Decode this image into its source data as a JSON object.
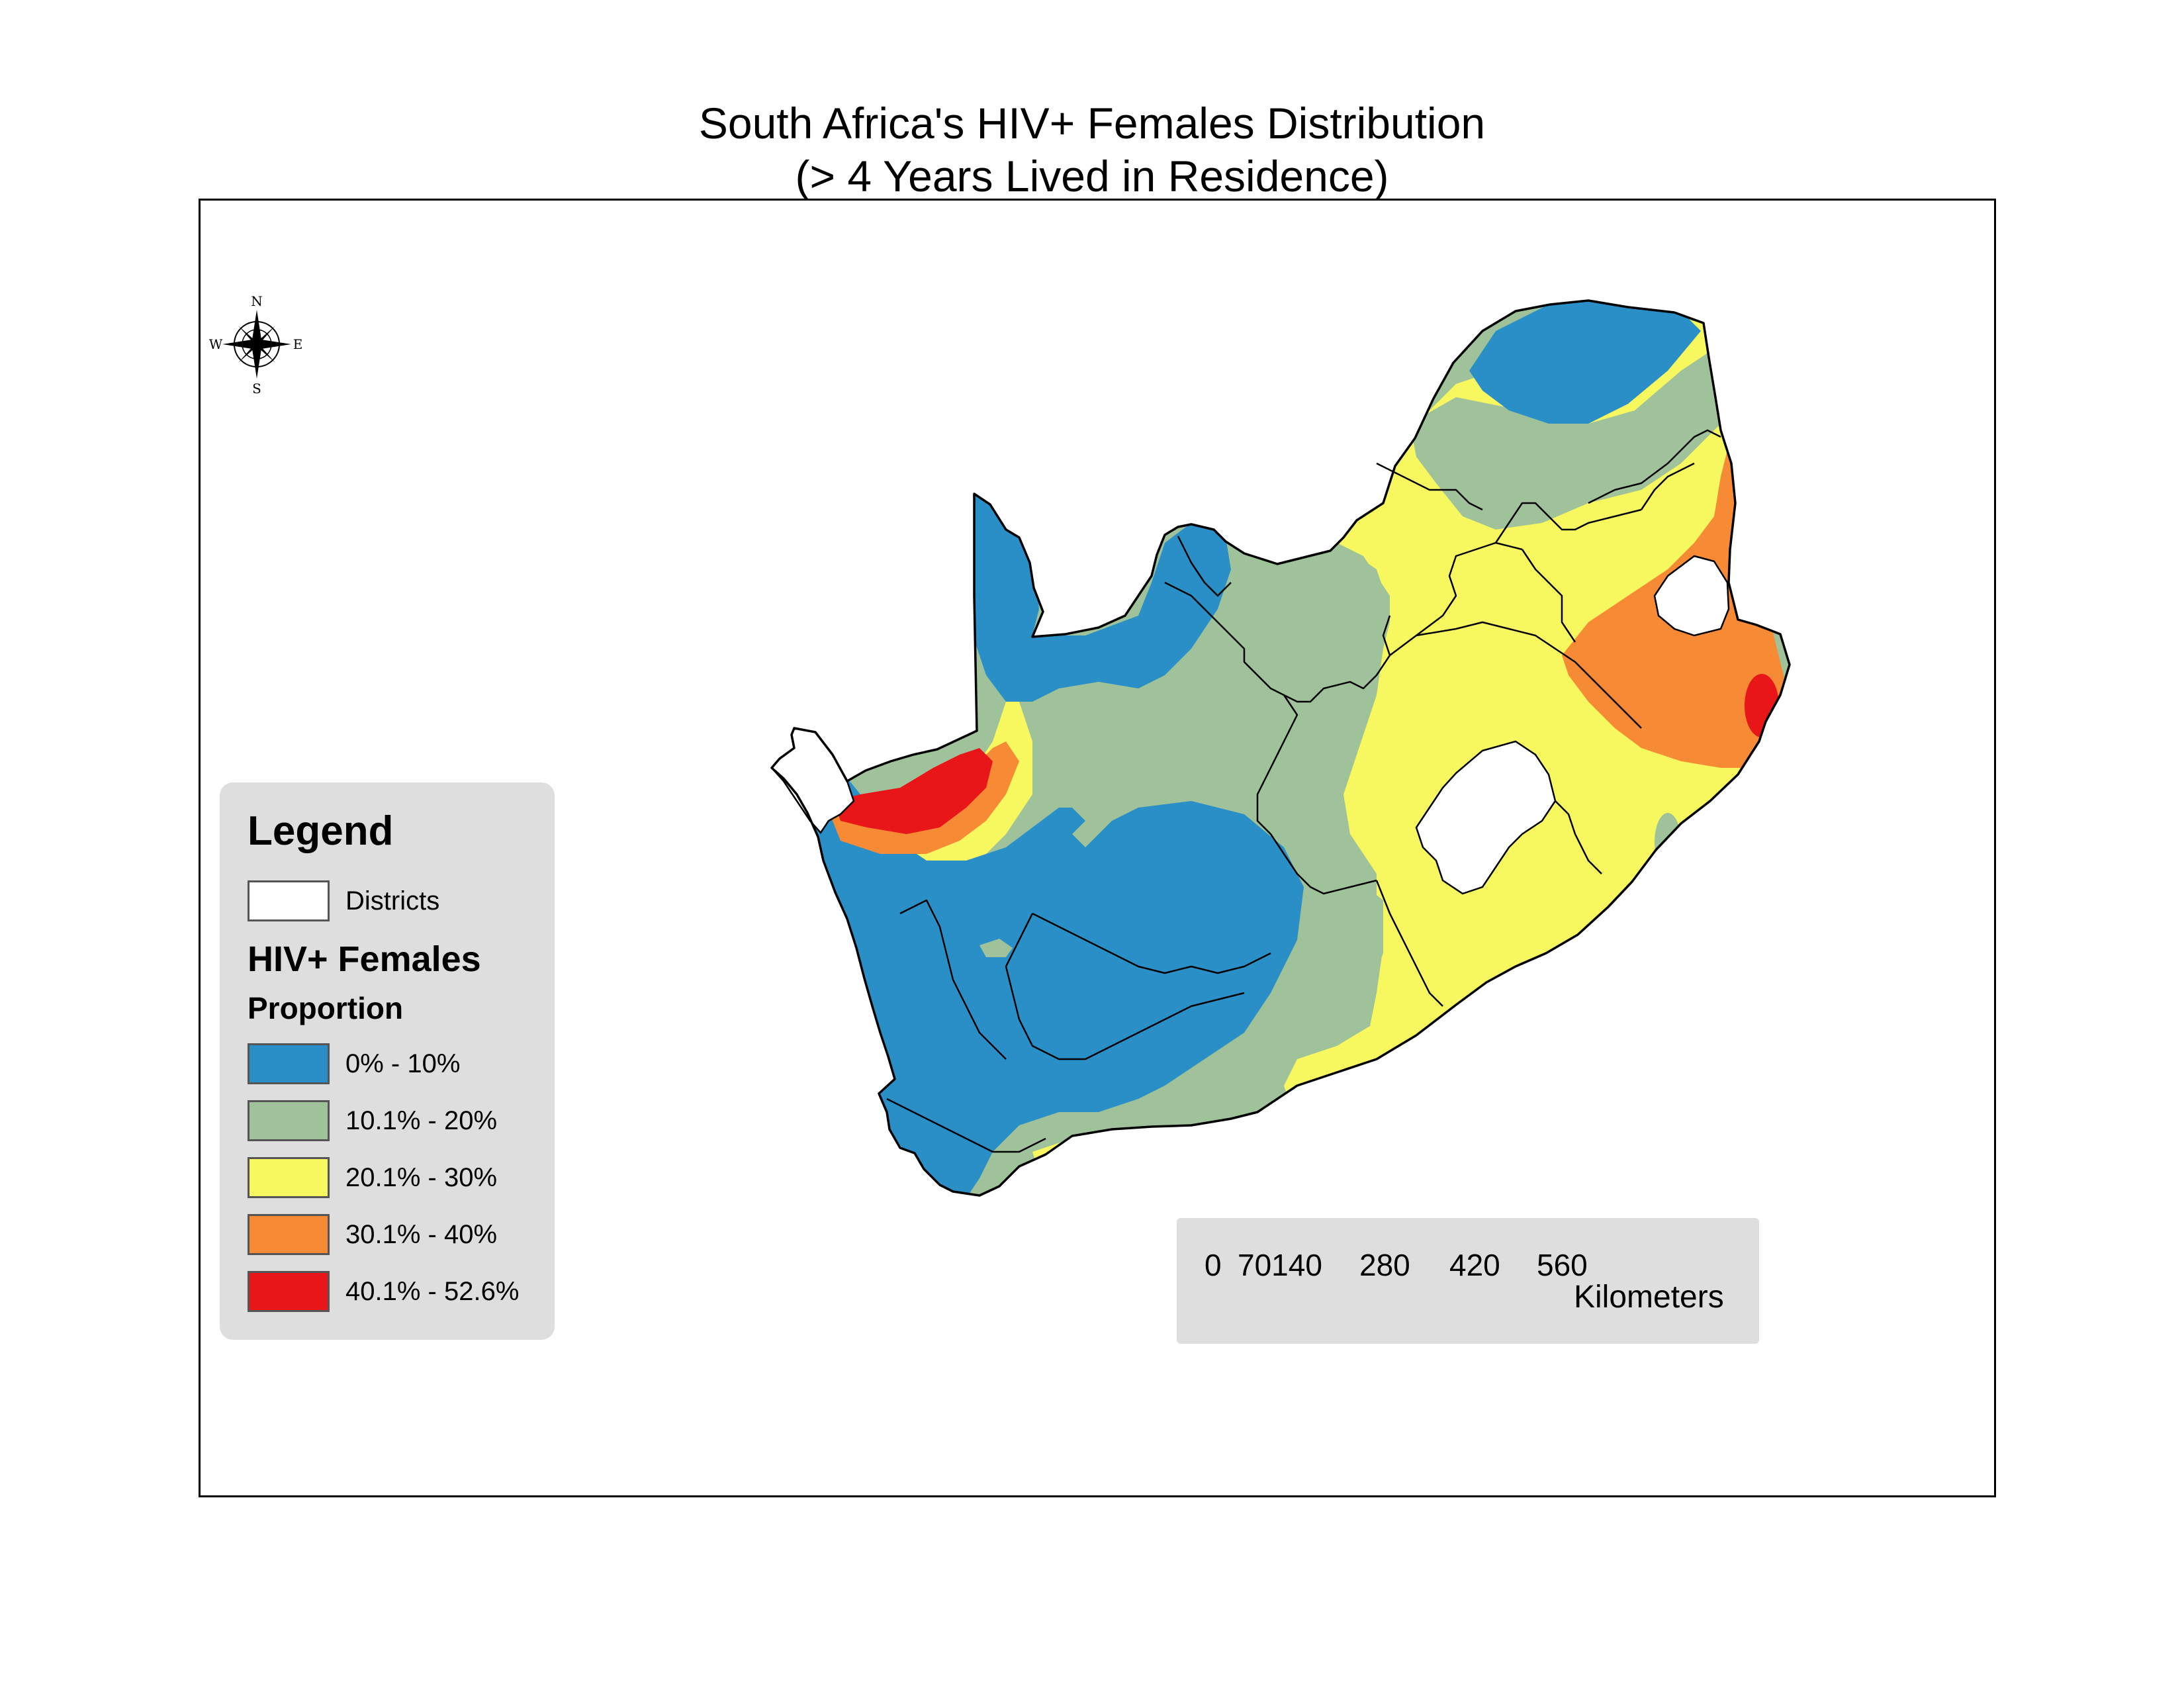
{
  "title": {
    "line1": "South Africa's HIV+ Females Distribution",
    "line2": "(> 4 Years Lived in Residence)"
  },
  "compass": {
    "n": "N",
    "s": "S",
    "e": "E",
    "w": "W"
  },
  "legend": {
    "heading": "Legend",
    "districts_label": "Districts",
    "layer_title": "HIV+ Females",
    "field_title": "Proportion",
    "classes": [
      {
        "label": "0% - 10%",
        "color": "#2b8fc7"
      },
      {
        "label": "10.1% - 20%",
        "color": "#a0c29b"
      },
      {
        "label": "20.1% - 30%",
        "color": "#f7f760"
      },
      {
        "label": "30.1% - 40%",
        "color": "#f78b35"
      },
      {
        "label": "40.1% - 52.6%",
        "color": "#e81519"
      }
    ]
  },
  "scale_bar": {
    "ticks": [
      "0",
      "70140",
      "280",
      "420",
      "560"
    ],
    "units": "Kilometers"
  },
  "colors": {
    "class_0_10": "#2b8fc7",
    "class_10_20": "#a0c29b",
    "class_20_30": "#f7f760",
    "class_30_40": "#f78b35",
    "class_40_52": "#e81519",
    "district_line": "#000000",
    "legend_bg": "#dedede"
  }
}
